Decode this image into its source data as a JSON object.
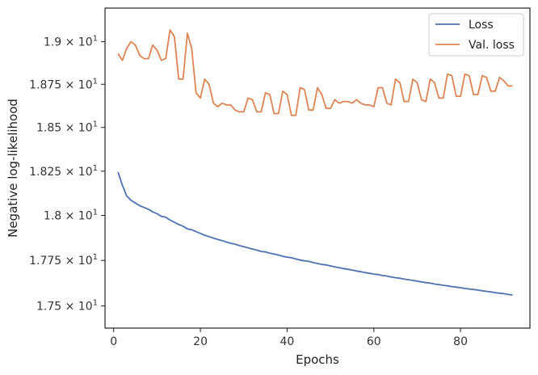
{
  "chart_data": {
    "type": "line",
    "xlabel": "Epochs",
    "ylabel": "Negative log-likelihood",
    "xlim": [
      -2,
      96
    ],
    "ylim": [
      17.38,
      19.2
    ],
    "y_scale": "log",
    "x_ticks": [
      0,
      20,
      40,
      60,
      80
    ],
    "x_tick_labels": [
      "0",
      "20",
      "40",
      "60",
      "80"
    ],
    "y_ticks": [
      17.5,
      17.75,
      18.0,
      18.25,
      18.5,
      18.75,
      19.0
    ],
    "y_tick_labels": [
      {
        "mantissa": "1.75",
        "base": "10",
        "exp": "1"
      },
      {
        "mantissa": "1.775",
        "base": "10",
        "exp": "1"
      },
      {
        "mantissa": "1.8",
        "base": "10",
        "exp": "1"
      },
      {
        "mantissa": "1.825",
        "base": "10",
        "exp": "1"
      },
      {
        "mantissa": "1.85",
        "base": "10",
        "exp": "1"
      },
      {
        "mantissa": "1.875",
        "base": "10",
        "exp": "1"
      },
      {
        "mantissa": "1.9",
        "base": "10",
        "exp": "1"
      }
    ],
    "legend_position": "top-right",
    "grid": false,
    "series": [
      {
        "name": "Loss",
        "color": "#4c72b0",
        "x": [
          1,
          2,
          3,
          4,
          5,
          6,
          7,
          8,
          9,
          10,
          11,
          12,
          13,
          14,
          15,
          16,
          17,
          18,
          19,
          20,
          21,
          22,
          23,
          24,
          25,
          26,
          27,
          28,
          29,
          30,
          31,
          32,
          33,
          34,
          35,
          36,
          37,
          38,
          39,
          40,
          41,
          42,
          43,
          44,
          45,
          46,
          47,
          48,
          49,
          50,
          51,
          52,
          53,
          54,
          55,
          56,
          57,
          58,
          59,
          60,
          61,
          62,
          63,
          64,
          65,
          66,
          67,
          68,
          69,
          70,
          71,
          72,
          73,
          74,
          75,
          76,
          77,
          78,
          79,
          80,
          81,
          82,
          83,
          84,
          85,
          86,
          87,
          88,
          89,
          90,
          91,
          92
        ],
        "y": [
          18.245,
          18.17,
          18.11,
          18.085,
          18.07,
          18.055,
          18.045,
          18.035,
          18.02,
          18.01,
          17.995,
          17.99,
          17.975,
          17.962,
          17.95,
          17.94,
          17.925,
          17.92,
          17.91,
          17.9,
          17.89,
          17.882,
          17.874,
          17.866,
          17.86,
          17.852,
          17.845,
          17.84,
          17.832,
          17.826,
          17.82,
          17.813,
          17.807,
          17.8,
          17.797,
          17.79,
          17.785,
          17.78,
          17.773,
          17.768,
          17.765,
          17.758,
          17.752,
          17.748,
          17.745,
          17.738,
          17.733,
          17.728,
          17.725,
          17.72,
          17.714,
          17.71,
          17.705,
          17.701,
          17.697,
          17.692,
          17.688,
          17.683,
          17.679,
          17.675,
          17.672,
          17.667,
          17.664,
          17.659,
          17.655,
          17.652,
          17.647,
          17.644,
          17.64,
          17.636,
          17.632,
          17.628,
          17.625,
          17.62,
          17.617,
          17.613,
          17.61,
          17.606,
          17.603,
          17.6,
          17.596,
          17.593,
          17.59,
          17.587,
          17.583,
          17.58,
          17.577,
          17.573,
          17.57,
          17.567,
          17.563,
          17.56
        ]
      },
      {
        "name": "Val. loss",
        "color": "#dd8452",
        "x": [
          1,
          2,
          3,
          4,
          5,
          6,
          7,
          8,
          9,
          10,
          11,
          12,
          13,
          14,
          15,
          16,
          17,
          18,
          19,
          20,
          21,
          22,
          23,
          24,
          25,
          26,
          27,
          28,
          29,
          30,
          31,
          32,
          33,
          34,
          35,
          36,
          37,
          38,
          39,
          40,
          41,
          42,
          43,
          44,
          45,
          46,
          47,
          48,
          49,
          50,
          51,
          52,
          53,
          54,
          55,
          56,
          57,
          58,
          59,
          60,
          61,
          62,
          63,
          64,
          65,
          66,
          67,
          68,
          69,
          70,
          71,
          72,
          73,
          74,
          75,
          76,
          77,
          78,
          79,
          80,
          81,
          82,
          83,
          84,
          85,
          86,
          87,
          88,
          89,
          90,
          91,
          92
        ],
        "y": [
          18.93,
          18.89,
          18.96,
          19.0,
          18.98,
          18.92,
          18.9,
          18.9,
          18.98,
          18.95,
          18.89,
          18.9,
          19.07,
          19.03,
          18.78,
          18.78,
          19.05,
          18.96,
          18.7,
          18.67,
          18.78,
          18.75,
          18.64,
          18.62,
          18.64,
          18.63,
          18.63,
          18.6,
          18.59,
          18.59,
          18.67,
          18.66,
          18.59,
          18.59,
          18.7,
          18.69,
          18.58,
          18.58,
          18.71,
          18.69,
          18.57,
          18.57,
          18.73,
          18.72,
          18.6,
          18.6,
          18.73,
          18.69,
          18.61,
          18.61,
          18.66,
          18.64,
          18.65,
          18.65,
          18.64,
          18.66,
          18.64,
          18.63,
          18.63,
          18.62,
          18.73,
          18.73,
          18.64,
          18.63,
          18.78,
          18.76,
          18.65,
          18.65,
          18.78,
          18.76,
          18.66,
          18.65,
          18.78,
          18.76,
          18.67,
          18.67,
          18.81,
          18.8,
          18.68,
          18.68,
          18.81,
          18.8,
          18.69,
          18.69,
          18.8,
          18.79,
          18.71,
          18.71,
          18.79,
          18.77,
          18.74,
          18.74
        ]
      }
    ]
  }
}
